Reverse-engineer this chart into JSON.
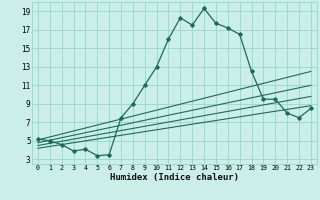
{
  "bg_color": "#cceee8",
  "grid_color": "#99ddcc",
  "line_color": "#1a6b5a",
  "xlabel": "Humidex (Indice chaleur)",
  "xlim": [
    -0.5,
    23.5
  ],
  "ylim": [
    2.5,
    20.0
  ],
  "yticks": [
    3,
    5,
    7,
    9,
    11,
    13,
    15,
    17,
    19
  ],
  "xticks": [
    0,
    1,
    2,
    3,
    4,
    5,
    6,
    7,
    8,
    9,
    10,
    11,
    12,
    13,
    14,
    15,
    16,
    17,
    18,
    19,
    20,
    21,
    22,
    23
  ],
  "main_x": [
    0,
    1,
    2,
    3,
    4,
    5,
    6,
    7,
    8,
    9,
    10,
    11,
    12,
    13,
    14,
    15,
    16,
    17,
    18,
    19,
    20,
    21,
    22,
    23
  ],
  "main_y": [
    5.2,
    5.0,
    4.6,
    3.9,
    4.1,
    3.4,
    3.5,
    7.5,
    9.0,
    11.0,
    13.0,
    16.0,
    18.3,
    17.5,
    19.3,
    17.7,
    17.2,
    16.5,
    12.5,
    9.5,
    9.5,
    8.0,
    7.5,
    8.5
  ],
  "diag_lines": [
    {
      "x0": 0.0,
      "y0": 5.1,
      "x1": 23,
      "y1": 12.5
    },
    {
      "x0": 0.0,
      "y0": 4.8,
      "x1": 23,
      "y1": 11.0
    },
    {
      "x0": 0.0,
      "y0": 4.5,
      "x1": 23,
      "y1": 9.8
    },
    {
      "x0": 0.0,
      "y0": 4.2,
      "x1": 23,
      "y1": 8.8
    }
  ]
}
